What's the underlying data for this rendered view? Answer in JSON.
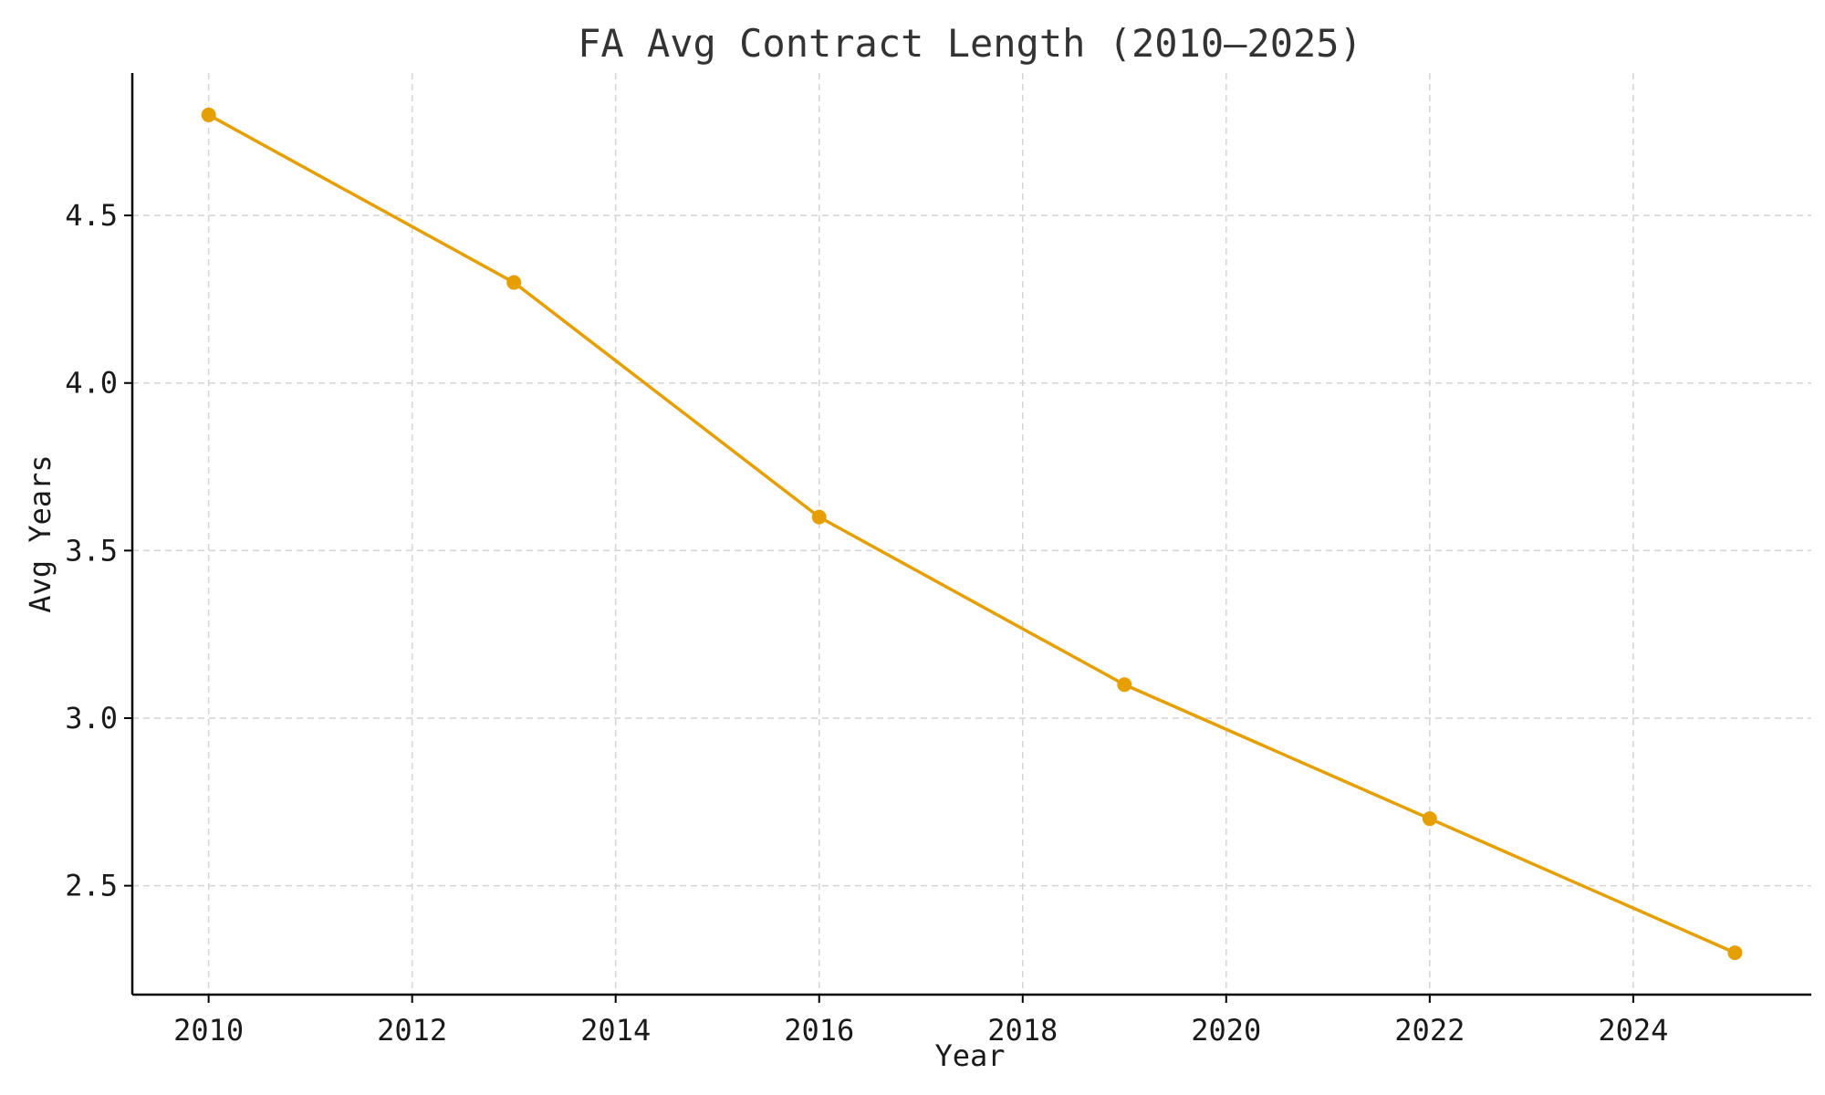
{
  "chart_data": {
    "type": "line",
    "title": "FA Avg Contract Length (2010–2025)",
    "xlabel": "Year",
    "ylabel": "Avg Years",
    "xlim": [
      2009.25,
      2025.75
    ],
    "ylim": [
      2.175,
      4.925
    ],
    "x_ticks": [
      2010,
      2012,
      2014,
      2016,
      2018,
      2020,
      2022,
      2024
    ],
    "y_ticks": [
      2.5,
      3.0,
      3.5,
      4.0,
      4.5
    ],
    "y_tick_labels": [
      "2.5",
      "3.0",
      "3.5",
      "4.0",
      "4.5"
    ],
    "grid": true,
    "series": [
      {
        "color": "#E69F00",
        "x": [
          2010,
          2013,
          2016,
          2019,
          2022,
          2025
        ],
        "y": [
          4.8,
          4.3,
          3.6,
          3.1,
          2.7,
          2.3
        ]
      }
    ]
  }
}
